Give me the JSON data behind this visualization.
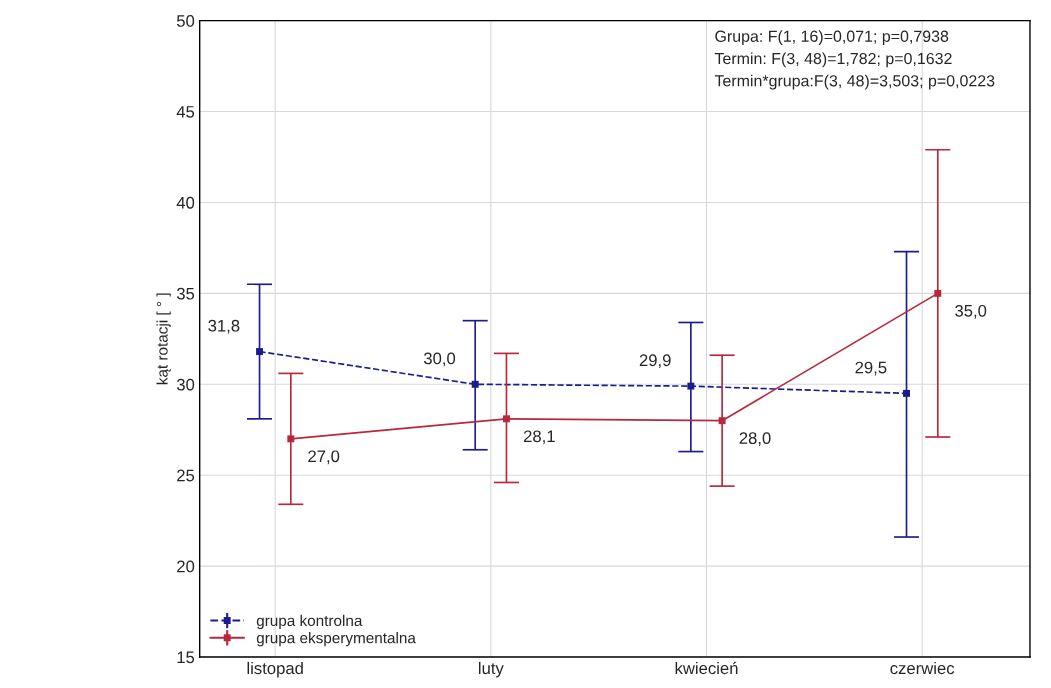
{
  "chart_data": {
    "type": "line",
    "ylabel": "kąt rotacji [ ° ]",
    "categories": [
      "listopad",
      "luty",
      "kwiecień",
      "czerwiec"
    ],
    "series": [
      {
        "name": "grupa kontrolna",
        "color": "#1c1c8c",
        "line_style": "dashed",
        "marker": "square",
        "values": [
          31.8,
          30.0,
          29.9,
          29.5
        ],
        "errors": [
          [
            28.1,
            35.5
          ],
          [
            26.4,
            33.5
          ],
          [
            26.3,
            33.4
          ],
          [
            21.6,
            37.3
          ]
        ],
        "value_labels": [
          "31,8",
          "30,0",
          "29,9",
          "29,5"
        ]
      },
      {
        "name": "grupa eksperymentalna",
        "color": "#b8283c",
        "line_style": "solid",
        "marker": "square",
        "values": [
          27.0,
          28.1,
          28.0,
          35.0
        ],
        "errors": [
          [
            23.4,
            30.6
          ],
          [
            24.6,
            31.7
          ],
          [
            24.4,
            31.6
          ],
          [
            27.1,
            42.9
          ]
        ],
        "value_labels": [
          "27,0",
          "28,1",
          "28,0",
          "35,0"
        ]
      }
    ],
    "ylim": [
      15,
      50
    ],
    "yticks": [
      15,
      20,
      25,
      30,
      35,
      40,
      45,
      50
    ],
    "grid": true,
    "legend": "bottom left",
    "annotations": [
      "Grupa: F(1, 16)=0,071; p=0,7938",
      "Termin: F(3, 48)=1,782; p=0,1632",
      "Termin*grupa:F(3, 48)=3,503; p=0,0223"
    ]
  }
}
